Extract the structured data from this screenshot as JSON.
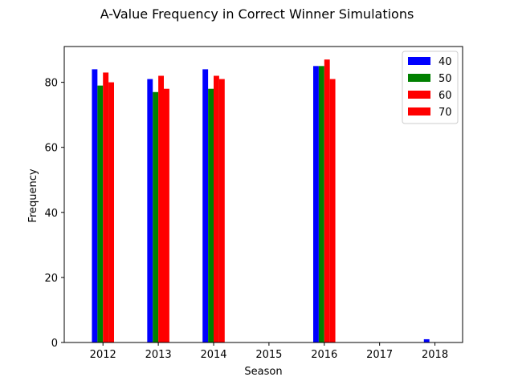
{
  "chart_data": {
    "type": "bar",
    "title": "A-Value Frequency in Correct Winner Simulations",
    "xlabel": "Season",
    "ylabel": "Frequency",
    "categories": [
      "2012",
      "2013",
      "2014",
      "2015",
      "2016",
      "2017",
      "2018"
    ],
    "x": [
      2012,
      2013,
      2014,
      2015,
      2016,
      2017,
      2018
    ],
    "ylim": [
      0,
      91
    ],
    "yticks": [
      0,
      20,
      40,
      60,
      80
    ],
    "grid": false,
    "legend_position": "top-right",
    "series": [
      {
        "name": "40",
        "color": "#0000ff",
        "values": [
          84,
          81,
          84,
          0,
          85,
          0,
          1
        ]
      },
      {
        "name": "50",
        "color": "#008000",
        "values": [
          79,
          77,
          78,
          0,
          85,
          0,
          0
        ]
      },
      {
        "name": "60",
        "color": "#ff0000",
        "values": [
          83,
          82,
          82,
          0,
          87,
          0,
          0
        ]
      },
      {
        "name": "70",
        "color": "#ff0000",
        "values": [
          80,
          78,
          81,
          0,
          81,
          0,
          0
        ]
      }
    ]
  }
}
